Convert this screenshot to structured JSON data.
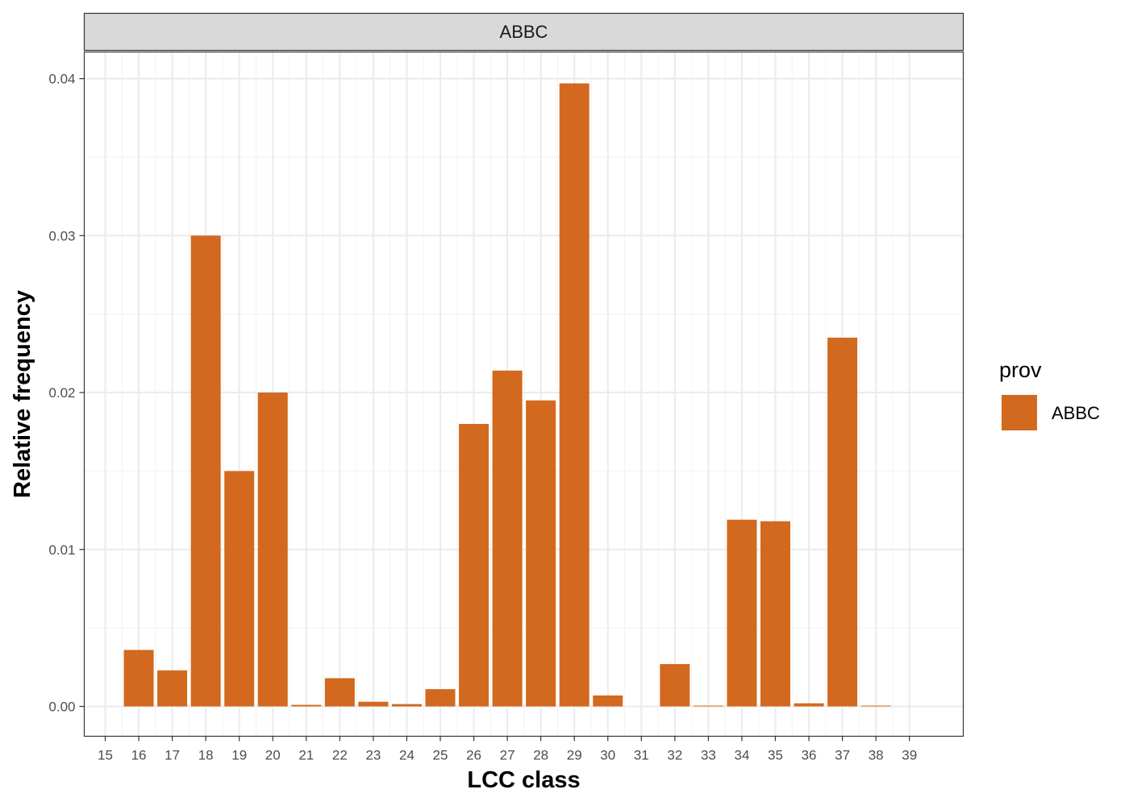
{
  "chart_data": {
    "type": "bar",
    "facet_label": "ABBC",
    "xlabel": "LCC class",
    "ylabel": "Relative frequency",
    "categories": [
      "15",
      "16",
      "17",
      "18",
      "19",
      "20",
      "21",
      "22",
      "23",
      "24",
      "25",
      "26",
      "27",
      "28",
      "29",
      "30",
      "31",
      "32",
      "33",
      "34",
      "35",
      "36",
      "37",
      "38",
      "39"
    ],
    "series": [
      {
        "name": "ABBC",
        "color": "#D2691E",
        "values": [
          0,
          0.0036,
          0.0023,
          0.03,
          0.015,
          0.02,
          0.0001,
          0.0018,
          0.0003,
          0.00015,
          0.0011,
          0.018,
          0.0214,
          0.0195,
          0.0397,
          0.0007,
          0,
          0.0027,
          5e-05,
          0.0119,
          0.0118,
          0.0002,
          0.0235,
          5e-05,
          0
        ]
      }
    ],
    "ylim": [
      -0.0019,
      0.0417
    ],
    "y_ticks": [
      0.0,
      0.01,
      0.02,
      0.03,
      0.04
    ],
    "y_tick_labels": [
      "0.00",
      "0.01",
      "0.02",
      "0.03",
      "0.04"
    ],
    "grid": true,
    "legend": {
      "title": "prov",
      "position": "right",
      "entries": [
        {
          "label": "ABBC",
          "color": "#D2691E"
        }
      ]
    }
  }
}
